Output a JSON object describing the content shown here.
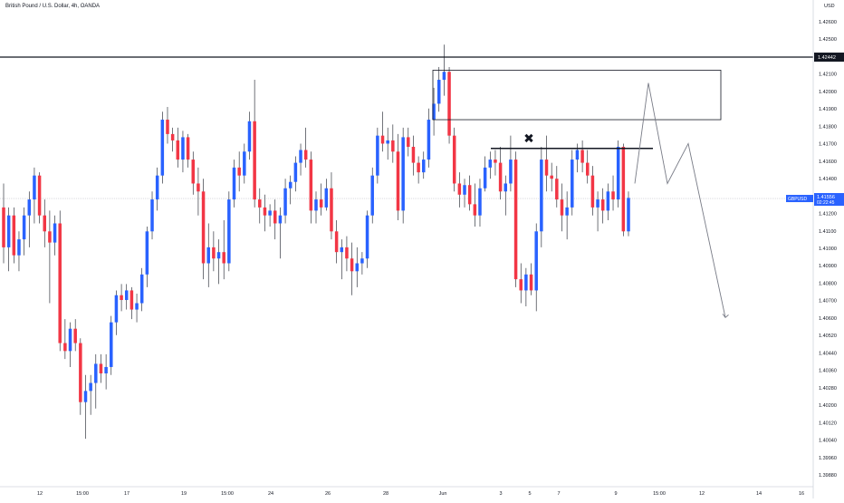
{
  "header": {
    "title": "British Pound / U.S. Dollar, 4h, OANDA"
  },
  "colors": {
    "up": "#2962ff",
    "down": "#f23645",
    "wick": "#131722",
    "axis": "#131722",
    "resistance_line": "#131722",
    "current_price_label_bg": "#2962ff"
  },
  "chart_data": {
    "type": "candlestick",
    "symbol": "GBPUSD",
    "timeframe": "4h",
    "ylim": [
      1.3975,
      1.428
    ],
    "y_axis": {
      "currency": "USD",
      "ticks": [
        "1.42600",
        "1.42500",
        "1.42300",
        "1.42100",
        "1.42000",
        "1.41900",
        "1.41800",
        "1.41700",
        "1.41600",
        "1.41400",
        "1.41300",
        "1.41200",
        "1.41100",
        "1.41000",
        "1.40900",
        "1.40800",
        "1.40700",
        "1.40600",
        "1.40520",
        "1.40440",
        "1.40360",
        "1.40280",
        "1.40200",
        "1.40120",
        "1.40040",
        "1.39960",
        "1.39880"
      ]
    },
    "x_axis": {
      "ticks": [
        "12",
        "15:00",
        "17",
        "19",
        "15:00",
        "24",
        "26",
        "28",
        "Jun",
        "3",
        "5",
        "7",
        "9",
        "15:00",
        "12",
        "14",
        "16",
        "15:00"
      ]
    },
    "resistance_level": {
      "price": 1.42442,
      "label": "1.42442"
    },
    "current_price": {
      "price": 1.41556,
      "symbol_label": "GBPUSD",
      "value_label": "1.41556",
      "countdown": "02:22:45"
    },
    "annotations": {
      "supply_zone": {
        "price_top": 1.4236,
        "price_bottom": 1.4205
      },
      "neckline": {
        "price": 1.4187
      },
      "x_mark": "✖",
      "projected_path": [
        1.4165,
        1.4228,
        1.4165,
        1.419,
        1.4081
      ]
    },
    "candles": [
      {
        "o": 1.415,
        "h": 1.4165,
        "l": 1.4115,
        "c": 1.4125
      },
      {
        "o": 1.4125,
        "h": 1.415,
        "l": 1.411,
        "c": 1.4145
      },
      {
        "o": 1.4145,
        "h": 1.415,
        "l": 1.4115,
        "c": 1.412
      },
      {
        "o": 1.412,
        "h": 1.4135,
        "l": 1.411,
        "c": 1.413
      },
      {
        "o": 1.413,
        "h": 1.415,
        "l": 1.412,
        "c": 1.4145
      },
      {
        "o": 1.4145,
        "h": 1.416,
        "l": 1.4125,
        "c": 1.4155
      },
      {
        "o": 1.4155,
        "h": 1.4175,
        "l": 1.414,
        "c": 1.417
      },
      {
        "o": 1.417,
        "h": 1.4172,
        "l": 1.414,
        "c": 1.4145
      },
      {
        "o": 1.4145,
        "h": 1.4155,
        "l": 1.4125,
        "c": 1.4135
      },
      {
        "o": 1.4135,
        "h": 1.4148,
        "l": 1.409,
        "c": 1.4128
      },
      {
        "o": 1.4128,
        "h": 1.4145,
        "l": 1.412,
        "c": 1.414
      },
      {
        "o": 1.414,
        "h": 1.4148,
        "l": 1.406,
        "c": 1.4065
      },
      {
        "o": 1.4065,
        "h": 1.408,
        "l": 1.4055,
        "c": 1.406
      },
      {
        "o": 1.406,
        "h": 1.4078,
        "l": 1.405,
        "c": 1.4074
      },
      {
        "o": 1.4074,
        "h": 1.408,
        "l": 1.406,
        "c": 1.4065
      },
      {
        "o": 1.4065,
        "h": 1.4068,
        "l": 1.402,
        "c": 1.4028
      },
      {
        "o": 1.4028,
        "h": 1.4045,
        "l": 1.4005,
        "c": 1.4035
      },
      {
        "o": 1.4035,
        "h": 1.4045,
        "l": 1.402,
        "c": 1.404
      },
      {
        "o": 1.404,
        "h": 1.4058,
        "l": 1.4024,
        "c": 1.4052
      },
      {
        "o": 1.4052,
        "h": 1.4058,
        "l": 1.404,
        "c": 1.4046
      },
      {
        "o": 1.4046,
        "h": 1.4058,
        "l": 1.4036,
        "c": 1.405
      },
      {
        "o": 1.405,
        "h": 1.4082,
        "l": 1.4045,
        "c": 1.4078
      },
      {
        "o": 1.4078,
        "h": 1.4098,
        "l": 1.407,
        "c": 1.4095
      },
      {
        "o": 1.4095,
        "h": 1.4102,
        "l": 1.4085,
        "c": 1.4092
      },
      {
        "o": 1.4092,
        "h": 1.4102,
        "l": 1.4086,
        "c": 1.4098
      },
      {
        "o": 1.4098,
        "h": 1.41,
        "l": 1.408,
        "c": 1.4086
      },
      {
        "o": 1.4086,
        "h": 1.4096,
        "l": 1.4078,
        "c": 1.409
      },
      {
        "o": 1.409,
        "h": 1.4112,
        "l": 1.4085,
        "c": 1.4108
      },
      {
        "o": 1.4108,
        "h": 1.4138,
        "l": 1.41,
        "c": 1.4135
      },
      {
        "o": 1.4135,
        "h": 1.416,
        "l": 1.413,
        "c": 1.4155
      },
      {
        "o": 1.4155,
        "h": 1.4175,
        "l": 1.4148,
        "c": 1.417
      },
      {
        "o": 1.417,
        "h": 1.421,
        "l": 1.4165,
        "c": 1.4205
      },
      {
        "o": 1.4205,
        "h": 1.4213,
        "l": 1.419,
        "c": 1.4196
      },
      {
        "o": 1.4196,
        "h": 1.42,
        "l": 1.4185,
        "c": 1.4192
      },
      {
        "o": 1.4192,
        "h": 1.42,
        "l": 1.4175,
        "c": 1.418
      },
      {
        "o": 1.418,
        "h": 1.4198,
        "l": 1.4172,
        "c": 1.4194
      },
      {
        "o": 1.4194,
        "h": 1.4196,
        "l": 1.4175,
        "c": 1.418
      },
      {
        "o": 1.418,
        "h": 1.4185,
        "l": 1.4158,
        "c": 1.4165
      },
      {
        "o": 1.4165,
        "h": 1.4175,
        "l": 1.4145,
        "c": 1.416
      },
      {
        "o": 1.416,
        "h": 1.4168,
        "l": 1.4105,
        "c": 1.4115
      },
      {
        "o": 1.4115,
        "h": 1.414,
        "l": 1.41,
        "c": 1.4125
      },
      {
        "o": 1.4125,
        "h": 1.4135,
        "l": 1.411,
        "c": 1.4118
      },
      {
        "o": 1.4118,
        "h": 1.413,
        "l": 1.4102,
        "c": 1.4122
      },
      {
        "o": 1.4122,
        "h": 1.4142,
        "l": 1.4105,
        "c": 1.4115
      },
      {
        "o": 1.4115,
        "h": 1.416,
        "l": 1.411,
        "c": 1.4155
      },
      {
        "o": 1.4155,
        "h": 1.418,
        "l": 1.415,
        "c": 1.4175
      },
      {
        "o": 1.4175,
        "h": 1.4185,
        "l": 1.416,
        "c": 1.417
      },
      {
        "o": 1.417,
        "h": 1.419,
        "l": 1.4165,
        "c": 1.4185
      },
      {
        "o": 1.4185,
        "h": 1.421,
        "l": 1.418,
        "c": 1.4204
      },
      {
        "o": 1.4204,
        "h": 1.423,
        "l": 1.415,
        "c": 1.4155
      },
      {
        "o": 1.4155,
        "h": 1.4162,
        "l": 1.414,
        "c": 1.415
      },
      {
        "o": 1.415,
        "h": 1.4158,
        "l": 1.4135,
        "c": 1.4145
      },
      {
        "o": 1.4145,
        "h": 1.4152,
        "l": 1.4138,
        "c": 1.4148
      },
      {
        "o": 1.4148,
        "h": 1.4155,
        "l": 1.413,
        "c": 1.414
      },
      {
        "o": 1.414,
        "h": 1.415,
        "l": 1.4118,
        "c": 1.4145
      },
      {
        "o": 1.4145,
        "h": 1.4168,
        "l": 1.414,
        "c": 1.4162
      },
      {
        "o": 1.4162,
        "h": 1.417,
        "l": 1.4152,
        "c": 1.4166
      },
      {
        "o": 1.4166,
        "h": 1.4182,
        "l": 1.416,
        "c": 1.4178
      },
      {
        "o": 1.4178,
        "h": 1.419,
        "l": 1.417,
        "c": 1.4186
      },
      {
        "o": 1.4186,
        "h": 1.42,
        "l": 1.4175,
        "c": 1.418
      },
      {
        "o": 1.418,
        "h": 1.4185,
        "l": 1.414,
        "c": 1.4148
      },
      {
        "o": 1.4148,
        "h": 1.416,
        "l": 1.414,
        "c": 1.4155
      },
      {
        "o": 1.4155,
        "h": 1.4165,
        "l": 1.4145,
        "c": 1.415
      },
      {
        "o": 1.415,
        "h": 1.4168,
        "l": 1.4148,
        "c": 1.4162
      },
      {
        "o": 1.4162,
        "h": 1.4172,
        "l": 1.413,
        "c": 1.4135
      },
      {
        "o": 1.4135,
        "h": 1.4142,
        "l": 1.4115,
        "c": 1.4122
      },
      {
        "o": 1.4122,
        "h": 1.413,
        "l": 1.4105,
        "c": 1.4125
      },
      {
        "o": 1.4125,
        "h": 1.4132,
        "l": 1.411,
        "c": 1.4118
      },
      {
        "o": 1.4118,
        "h": 1.4128,
        "l": 1.4095,
        "c": 1.411
      },
      {
        "o": 1.411,
        "h": 1.4125,
        "l": 1.41,
        "c": 1.4115
      },
      {
        "o": 1.4115,
        "h": 1.4122,
        "l": 1.4108,
        "c": 1.4118
      },
      {
        "o": 1.4118,
        "h": 1.4148,
        "l": 1.4112,
        "c": 1.4145
      },
      {
        "o": 1.4145,
        "h": 1.4175,
        "l": 1.414,
        "c": 1.417
      },
      {
        "o": 1.417,
        "h": 1.42,
        "l": 1.4165,
        "c": 1.4195
      },
      {
        "o": 1.4195,
        "h": 1.421,
        "l": 1.4185,
        "c": 1.419
      },
      {
        "o": 1.419,
        "h": 1.42,
        "l": 1.418,
        "c": 1.4192
      },
      {
        "o": 1.4192,
        "h": 1.4202,
        "l": 1.4178,
        "c": 1.4185
      },
      {
        "o": 1.4185,
        "h": 1.4196,
        "l": 1.4142,
        "c": 1.4148
      },
      {
        "o": 1.4148,
        "h": 1.42,
        "l": 1.414,
        "c": 1.4194
      },
      {
        "o": 1.4194,
        "h": 1.42,
        "l": 1.4182,
        "c": 1.4188
      },
      {
        "o": 1.4188,
        "h": 1.4195,
        "l": 1.417,
        "c": 1.4178
      },
      {
        "o": 1.4178,
        "h": 1.4182,
        "l": 1.4165,
        "c": 1.4172
      },
      {
        "o": 1.4172,
        "h": 1.4185,
        "l": 1.4168,
        "c": 1.418
      },
      {
        "o": 1.418,
        "h": 1.4212,
        "l": 1.4175,
        "c": 1.4205
      },
      {
        "o": 1.4205,
        "h": 1.4225,
        "l": 1.4195,
        "c": 1.4215
      },
      {
        "o": 1.4215,
        "h": 1.4238,
        "l": 1.421,
        "c": 1.423
      },
      {
        "o": 1.423,
        "h": 1.4252,
        "l": 1.422,
        "c": 1.4235
      },
      {
        "o": 1.4235,
        "h": 1.4238,
        "l": 1.419,
        "c": 1.4195
      },
      {
        "o": 1.4195,
        "h": 1.42,
        "l": 1.416,
        "c": 1.4165
      },
      {
        "o": 1.4165,
        "h": 1.4172,
        "l": 1.415,
        "c": 1.4158
      },
      {
        "o": 1.4158,
        "h": 1.4168,
        "l": 1.415,
        "c": 1.4164
      },
      {
        "o": 1.4164,
        "h": 1.417,
        "l": 1.4148,
        "c": 1.4152
      },
      {
        "o": 1.4152,
        "h": 1.4165,
        "l": 1.4138,
        "c": 1.4145
      },
      {
        "o": 1.4145,
        "h": 1.4168,
        "l": 1.4138,
        "c": 1.4162
      },
      {
        "o": 1.4162,
        "h": 1.4182,
        "l": 1.416,
        "c": 1.4175
      },
      {
        "o": 1.4175,
        "h": 1.4185,
        "l": 1.4168,
        "c": 1.418
      },
      {
        "o": 1.418,
        "h": 1.4186,
        "l": 1.417,
        "c": 1.4178
      },
      {
        "o": 1.4178,
        "h": 1.4188,
        "l": 1.4155,
        "c": 1.416
      },
      {
        "o": 1.416,
        "h": 1.417,
        "l": 1.4145,
        "c": 1.4165
      },
      {
        "o": 1.4165,
        "h": 1.4195,
        "l": 1.416,
        "c": 1.418
      },
      {
        "o": 1.418,
        "h": 1.4185,
        "l": 1.41,
        "c": 1.4105
      },
      {
        "o": 1.4105,
        "h": 1.4115,
        "l": 1.409,
        "c": 1.4098
      },
      {
        "o": 1.4098,
        "h": 1.4112,
        "l": 1.4088,
        "c": 1.4108
      },
      {
        "o": 1.4108,
        "h": 1.4115,
        "l": 1.4095,
        "c": 1.4098
      },
      {
        "o": 1.4098,
        "h": 1.414,
        "l": 1.4085,
        "c": 1.4135
      },
      {
        "o": 1.4135,
        "h": 1.4188,
        "l": 1.4125,
        "c": 1.418
      },
      {
        "o": 1.418,
        "h": 1.4195,
        "l": 1.416,
        "c": 1.417
      },
      {
        "o": 1.417,
        "h": 1.4178,
        "l": 1.416,
        "c": 1.4168
      },
      {
        "o": 1.4168,
        "h": 1.4176,
        "l": 1.415,
        "c": 1.4155
      },
      {
        "o": 1.4155,
        "h": 1.4165,
        "l": 1.4135,
        "c": 1.4145
      },
      {
        "o": 1.4145,
        "h": 1.416,
        "l": 1.413,
        "c": 1.415
      },
      {
        "o": 1.415,
        "h": 1.4186,
        "l": 1.4145,
        "c": 1.418
      },
      {
        "o": 1.418,
        "h": 1.419,
        "l": 1.4172,
        "c": 1.4186
      },
      {
        "o": 1.4186,
        "h": 1.4192,
        "l": 1.4172,
        "c": 1.4178
      },
      {
        "o": 1.4178,
        "h": 1.4186,
        "l": 1.4165,
        "c": 1.417
      },
      {
        "o": 1.417,
        "h": 1.4176,
        "l": 1.4145,
        "c": 1.415
      },
      {
        "o": 1.415,
        "h": 1.416,
        "l": 1.4135,
        "c": 1.4155
      },
      {
        "o": 1.4155,
        "h": 1.4162,
        "l": 1.414,
        "c": 1.4148
      },
      {
        "o": 1.4148,
        "h": 1.4165,
        "l": 1.4142,
        "c": 1.416
      },
      {
        "o": 1.416,
        "h": 1.417,
        "l": 1.4148,
        "c": 1.4155
      },
      {
        "o": 1.4155,
        "h": 1.4192,
        "l": 1.415,
        "c": 1.4188
      },
      {
        "o": 1.4188,
        "h": 1.419,
        "l": 1.4132,
        "c": 1.4135
      },
      {
        "o": 1.4135,
        "h": 1.416,
        "l": 1.4132,
        "c": 1.4156
      }
    ]
  }
}
